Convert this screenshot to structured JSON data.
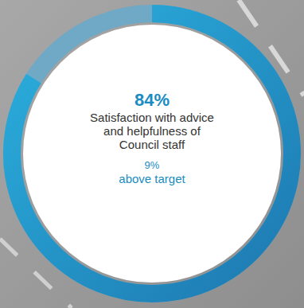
{
  "chart_data": {
    "type": "donut",
    "title": "Satisfaction with advice and helpfulness of Council staff",
    "values": [
      84
    ],
    "value_labels": [
      "84%"
    ],
    "ylim": [
      0,
      100
    ],
    "color": "#1d78b0",
    "target_difference": {
      "value": 9,
      "label": "9%"
    },
    "target_text": "above target"
  }
}
